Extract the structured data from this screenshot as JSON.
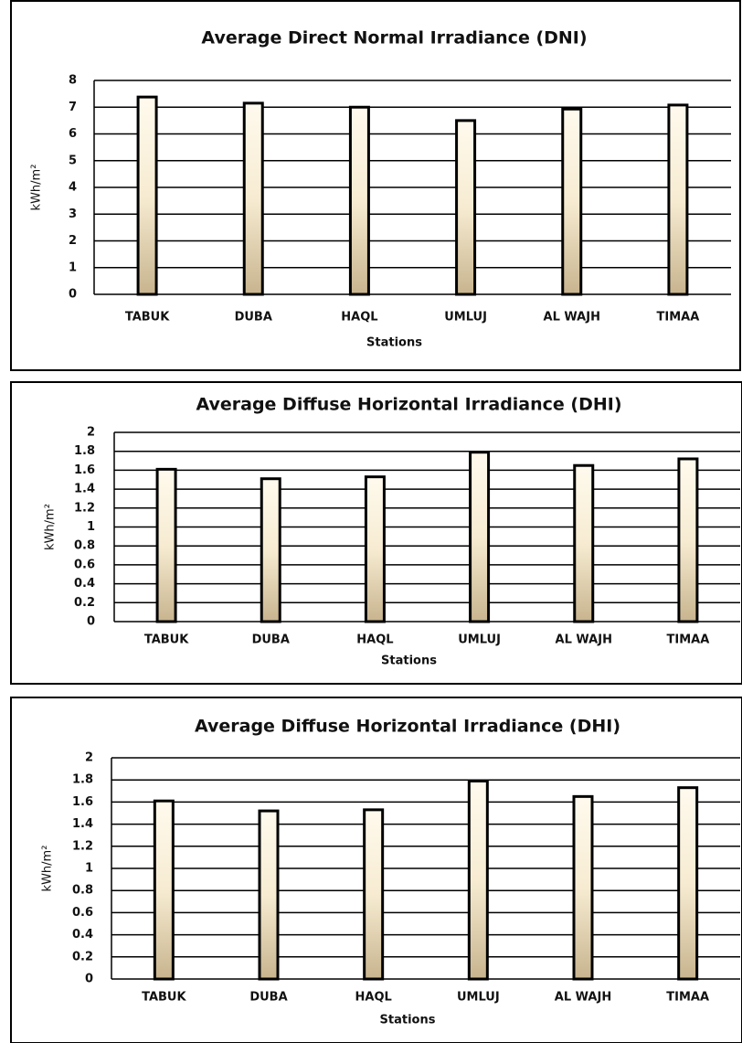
{
  "chart_data": [
    {
      "type": "bar",
      "title": "Average Direct Normal Irradiance (DNI)",
      "x_label": "Stations",
      "y_label": "kWh/m²",
      "categories": [
        "TABUK",
        "DUBA",
        "HAQL",
        "UMLUJ",
        "AL WAJH",
        "TIMAA"
      ],
      "values": [
        7.38,
        7.15,
        7.0,
        6.5,
        6.93,
        7.08
      ],
      "ylim": [
        0,
        8
      ],
      "yticks": [
        0,
        1,
        2,
        3,
        4,
        5,
        6,
        7,
        8
      ],
      "grid": true
    },
    {
      "type": "bar",
      "title": "Average Diffuse  Horizontal Irradiance (DHI)",
      "x_label": "Stations",
      "y_label": "kWh/m²",
      "categories": [
        "TABUK",
        "DUBA",
        "HAQL",
        "UMLUJ",
        "AL WAJH",
        "TIMAA"
      ],
      "values": [
        1.61,
        1.51,
        1.53,
        1.79,
        1.65,
        1.72
      ],
      "ylim": [
        0,
        2
      ],
      "yticks": [
        0,
        0.2,
        0.4,
        0.6,
        0.8,
        1,
        1.2,
        1.4,
        1.6,
        1.8,
        2
      ],
      "grid": true
    },
    {
      "type": "bar",
      "title": "Average Diffuse  Horizontal Irradiance (DHI)",
      "x_label": "Stations",
      "y_label": "kWh/m²",
      "categories": [
        "TABUK",
        "DUBA",
        "HAQL",
        "UMLUJ",
        "AL WAJH",
        "TIMAA"
      ],
      "values": [
        1.61,
        1.52,
        1.53,
        1.79,
        1.65,
        1.73
      ],
      "ylim": [
        0,
        2
      ],
      "yticks": [
        0,
        0.2,
        0.4,
        0.6,
        0.8,
        1,
        1.2,
        1.4,
        1.6,
        1.8,
        2
      ],
      "grid": true
    }
  ]
}
